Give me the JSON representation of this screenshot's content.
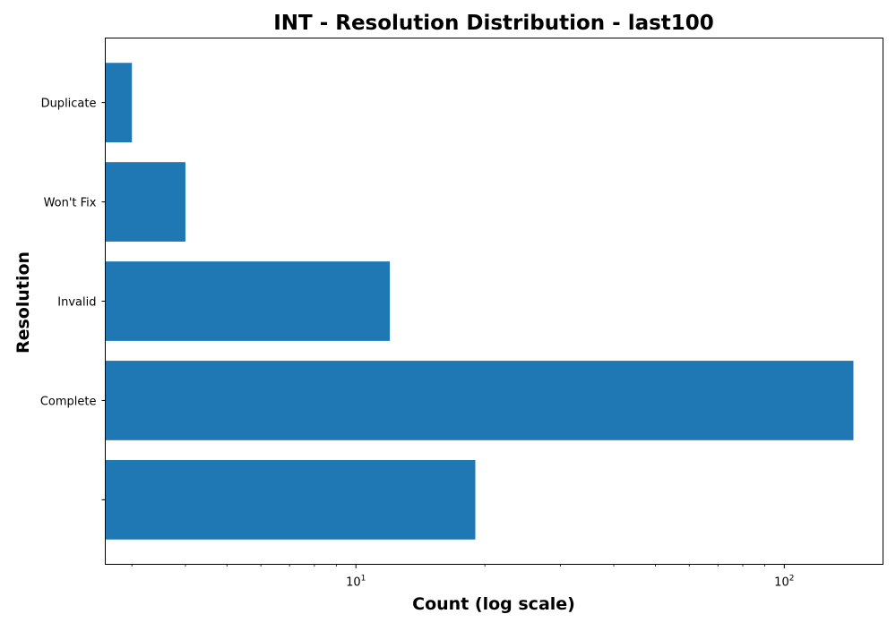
{
  "chart_data": {
    "type": "bar",
    "orientation": "horizontal",
    "title": "INT - Resolution Distribution - last100",
    "xlabel": "Count (log scale)",
    "ylabel": "Resolution",
    "x_scale": "log",
    "xlim": [
      2.6,
      170
    ],
    "x_ticks": [
      {
        "value": 10,
        "base": "10",
        "exp": "1"
      },
      {
        "value": 100,
        "base": "10",
        "exp": "2"
      }
    ],
    "categories": [
      "",
      "Complete",
      "Invalid",
      "Won't Fix",
      "Duplicate"
    ],
    "values": [
      19,
      145,
      12,
      4,
      3
    ],
    "grid": false,
    "legend": "none",
    "colors": {
      "bar": "#1f77b4",
      "axis": "#000000",
      "background": "#ffffff"
    }
  }
}
